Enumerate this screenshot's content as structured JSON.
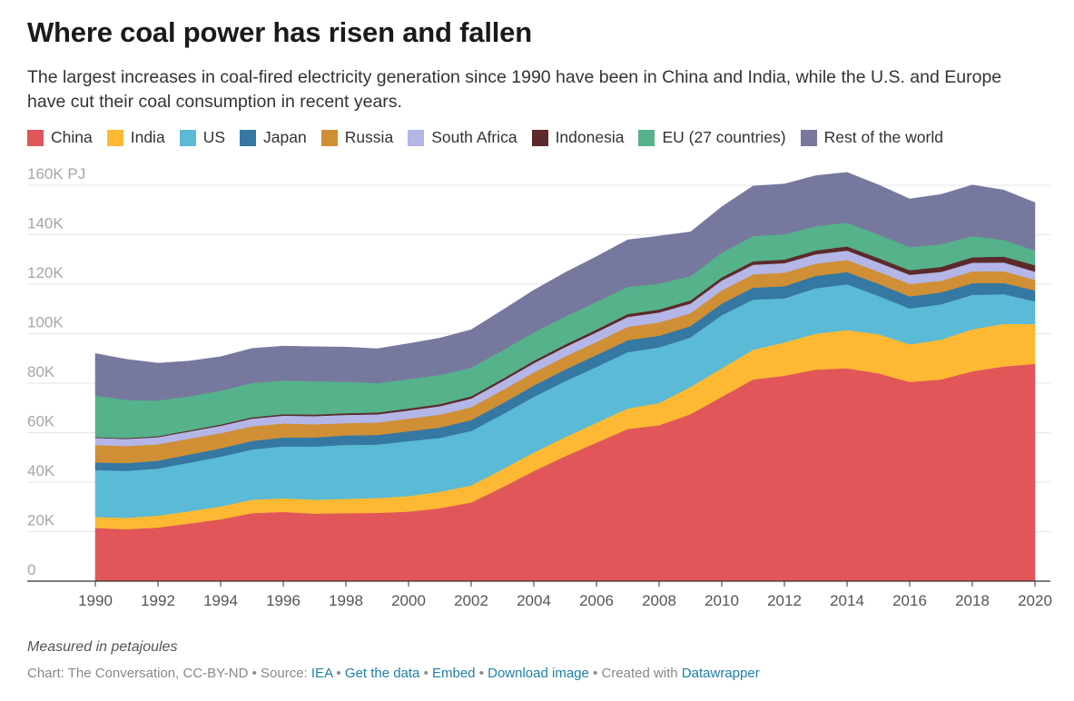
{
  "header": {
    "title": "Where coal power has risen and fallen",
    "subtitle": "The largest increases in coal-fired electricity generation since 1990 have been in China and India, while the U.S. and Europe have cut their coal consumption in recent years."
  },
  "legend": [
    {
      "name": "China",
      "color": "#e15759"
    },
    {
      "name": "India",
      "color": "#fdb933"
    },
    {
      "name": "US",
      "color": "#5bbad5"
    },
    {
      "name": "Japan",
      "color": "#3578a3"
    },
    {
      "name": "Russia",
      "color": "#d08f35"
    },
    {
      "name": "South Africa",
      "color": "#b3b6e6"
    },
    {
      "name": "Indonesia",
      "color": "#5c2a2a"
    },
    {
      "name": "EU (27 countries)",
      "color": "#55b28b"
    },
    {
      "name": "Rest of the world",
      "color": "#77789e"
    }
  ],
  "chart_data": {
    "type": "area",
    "stacked": true,
    "unit": "PJ",
    "ylim": [
      0,
      160000
    ],
    "yticks": [
      {
        "value": 0,
        "label": "0"
      },
      {
        "value": 20000,
        "label": "20K"
      },
      {
        "value": 40000,
        "label": "40K"
      },
      {
        "value": 60000,
        "label": "60K"
      },
      {
        "value": 80000,
        "label": "80K"
      },
      {
        "value": 100000,
        "label": "100K"
      },
      {
        "value": 120000,
        "label": "120K"
      },
      {
        "value": 140000,
        "label": "140K"
      },
      {
        "value": 160000,
        "label": "160K PJ"
      }
    ],
    "xticks": [
      "1990",
      "1992",
      "1994",
      "1996",
      "1998",
      "2000",
      "2002",
      "2004",
      "2006",
      "2008",
      "2010",
      "2012",
      "2014",
      "2016",
      "2018",
      "2020"
    ],
    "x": [
      1990,
      1991,
      1992,
      1993,
      1994,
      1995,
      1996,
      1997,
      1998,
      1999,
      2000,
      2001,
      2002,
      2003,
      2004,
      2005,
      2006,
      2007,
      2008,
      2009,
      2010,
      2011,
      2012,
      2013,
      2014,
      2015,
      2016,
      2017,
      2018,
      2019,
      2020
    ],
    "series": [
      {
        "name": "China",
        "color": "#e15759",
        "values": [
          21500,
          21000,
          21700,
          23300,
          25000,
          27500,
          28000,
          27300,
          27500,
          27600,
          28100,
          29500,
          31800,
          38000,
          44500,
          50500,
          56000,
          61500,
          63000,
          67500,
          74500,
          81500,
          83000,
          85500,
          86000,
          84000,
          80500,
          81500,
          84800,
          86800,
          87800
        ]
      },
      {
        "name": "India",
        "color": "#fdb933",
        "values": [
          4400,
          4600,
          4800,
          5000,
          5200,
          5400,
          5500,
          5600,
          5800,
          6000,
          6300,
          6600,
          6900,
          7200,
          7500,
          7700,
          8000,
          8300,
          9000,
          11000,
          11500,
          12000,
          13500,
          14500,
          15500,
          15800,
          15200,
          16100,
          17000,
          17200,
          16100
        ]
      },
      {
        "name": "US",
        "color": "#5bbad5",
        "values": [
          19000,
          19000,
          19000,
          19600,
          20100,
          20300,
          21000,
          21500,
          21800,
          21600,
          22200,
          21800,
          22000,
          22200,
          22500,
          22600,
          22600,
          22800,
          22500,
          20000,
          21500,
          20300,
          17800,
          18400,
          18500,
          15500,
          14500,
          14300,
          13900,
          12000,
          9200
        ]
      },
      {
        "name": "Japan",
        "color": "#3578a3",
        "values": [
          3100,
          3100,
          3200,
          3300,
          3400,
          3500,
          3600,
          3700,
          3800,
          3900,
          4000,
          4200,
          4400,
          4500,
          4600,
          4700,
          4800,
          4800,
          4700,
          4600,
          4700,
          4800,
          4900,
          5000,
          4900,
          4900,
          4900,
          4800,
          4700,
          4500,
          4400
        ]
      },
      {
        "name": "Russia",
        "color": "#d08f35",
        "values": [
          7000,
          6900,
          6600,
          6400,
          6100,
          5900,
          5600,
          5300,
          5000,
          5000,
          5100,
          5200,
          5200,
          5300,
          5300,
          5300,
          5300,
          5400,
          5400,
          5200,
          5300,
          5400,
          5500,
          4900,
          4900,
          4900,
          5000,
          4700,
          4800,
          4800,
          4300
        ]
      },
      {
        "name": "South Africa",
        "color": "#b3b6e6",
        "values": [
          2900,
          2900,
          2900,
          2900,
          3000,
          3100,
          3200,
          3300,
          3300,
          3300,
          3300,
          3400,
          3500,
          3600,
          3700,
          3800,
          3900,
          4000,
          4000,
          3900,
          4000,
          3900,
          3800,
          3800,
          3800,
          3700,
          3700,
          3600,
          3500,
          3500,
          3300
        ]
      },
      {
        "name": "Indonesia",
        "color": "#5c2a2a",
        "values": [
          300,
          350,
          400,
          450,
          500,
          550,
          600,
          650,
          700,
          750,
          800,
          850,
          900,
          950,
          1000,
          1050,
          1100,
          1150,
          1200,
          1250,
          1300,
          1400,
          1500,
          1600,
          1700,
          1800,
          1900,
          2000,
          2200,
          2400,
          2600
        ]
      },
      {
        "name": "EU (27 countries)",
        "color": "#55b28b",
        "values": [
          16800,
          15400,
          14400,
          13800,
          13700,
          13900,
          13600,
          13500,
          12700,
          11900,
          11900,
          11800,
          11600,
          11500,
          11400,
          11300,
          11200,
          11000,
          10500,
          9800,
          10000,
          10200,
          10200,
          9800,
          9600,
          9500,
          9300,
          9200,
          8600,
          6700,
          5900
        ]
      },
      {
        "name": "Rest of the world",
        "color": "#77789e",
        "values": [
          17000,
          16400,
          15100,
          14200,
          13700,
          13900,
          13900,
          13900,
          14000,
          13900,
          14300,
          14900,
          15300,
          16300,
          17100,
          17800,
          18300,
          19000,
          19200,
          17900,
          18500,
          20200,
          20300,
          20400,
          20300,
          20100,
          19500,
          20100,
          20600,
          20200,
          19400
        ]
      }
    ]
  },
  "footer": {
    "note": "Measured in petajoules",
    "source_prefix": "Chart: The Conversation, CC-BY-ND • Source: ",
    "source_iea": "IEA",
    "sep1": " • ",
    "get_data": "Get the data",
    "sep2": " • ",
    "embed": "Embed",
    "sep3": "  • ",
    "download": "Download image",
    "sep4": " • Created with ",
    "datawrapper": "Datawrapper"
  }
}
